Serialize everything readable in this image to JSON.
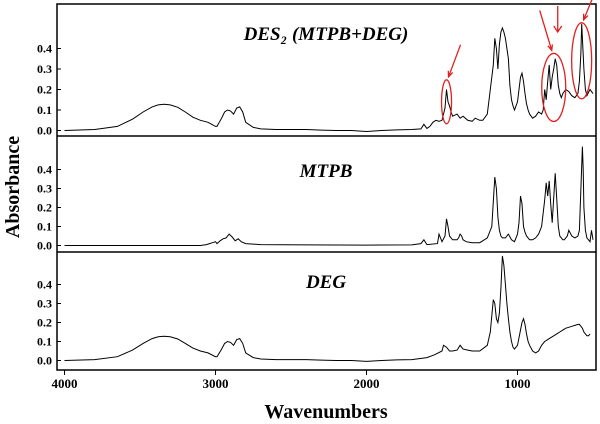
{
  "chart_data": [
    {
      "type": "line",
      "title": "DES₂ (MTPB+DEG)",
      "ylim": [
        -0.03,
        0.55
      ],
      "y_ticks": [
        "0.0",
        "0.1",
        "0.2",
        "0.3",
        "0.4"
      ],
      "highlight_color": "#e02020",
      "highlighted_peaks": [
        1470,
        760,
        575
      ],
      "series": [
        {
          "x": [
            4000,
            3800,
            3650,
            3550,
            3480,
            3420,
            3380,
            3340,
            3300,
            3250,
            3200,
            3150,
            3100,
            3050,
            3000,
            2990,
            2960,
            2940,
            2920,
            2900,
            2880,
            2860,
            2840,
            2820,
            2800,
            2750,
            2700,
            2600,
            2500,
            2400,
            2300,
            2200,
            2100,
            2000,
            1900,
            1800,
            1700,
            1640,
            1620,
            1600,
            1580,
            1560,
            1540,
            1520,
            1500,
            1490,
            1480,
            1470,
            1460,
            1450,
            1440,
            1430,
            1400,
            1380,
            1360,
            1330,
            1300,
            1280,
            1250,
            1230,
            1200,
            1180,
            1160,
            1150,
            1140,
            1130,
            1120,
            1110,
            1100,
            1090,
            1080,
            1070,
            1060,
            1050,
            1040,
            1030,
            1020,
            1000,
            990,
            980,
            970,
            960,
            950,
            940,
            930,
            920,
            900,
            880,
            860,
            840,
            830,
            820,
            810,
            800,
            790,
            780,
            770,
            760,
            750,
            740,
            730,
            720,
            710,
            700,
            680,
            660,
            640,
            620,
            600,
            590,
            580,
            575,
            570,
            560,
            550,
            540,
            520,
            500
          ],
          "y": [
            0.0,
            0.005,
            0.02,
            0.055,
            0.09,
            0.115,
            0.125,
            0.128,
            0.125,
            0.113,
            0.09,
            0.065,
            0.05,
            0.04,
            0.02,
            0.02,
            0.06,
            0.09,
            0.1,
            0.095,
            0.08,
            0.11,
            0.115,
            0.09,
            0.04,
            0.015,
            0.008,
            0.005,
            0.005,
            0.005,
            0.002,
            0.0,
            0.0,
            -0.005,
            0.0,
            0.003,
            0.005,
            0.008,
            0.03,
            0.01,
            0.02,
            0.04,
            0.05,
            0.045,
            0.05,
            0.08,
            0.11,
            0.2,
            0.14,
            0.12,
            0.09,
            0.07,
            0.08,
            0.06,
            0.07,
            0.05,
            0.045,
            0.06,
            0.05,
            0.05,
            0.08,
            0.2,
            0.32,
            0.45,
            0.4,
            0.3,
            0.42,
            0.48,
            0.5,
            0.48,
            0.45,
            0.4,
            0.35,
            0.22,
            0.15,
            0.12,
            0.1,
            0.14,
            0.2,
            0.26,
            0.28,
            0.24,
            0.18,
            0.13,
            0.1,
            0.08,
            0.06,
            0.07,
            0.09,
            0.08,
            0.1,
            0.2,
            0.15,
            0.24,
            0.32,
            0.2,
            0.26,
            0.3,
            0.35,
            0.32,
            0.22,
            0.18,
            0.16,
            0.18,
            0.2,
            0.19,
            0.17,
            0.16,
            0.18,
            0.24,
            0.38,
            0.52,
            0.45,
            0.3,
            0.2,
            0.17,
            0.2,
            0.18
          ]
        }
      ]
    },
    {
      "type": "line",
      "title": "MTPB",
      "ylim": [
        -0.03,
        0.55
      ],
      "y_ticks": [
        "0.0",
        "0.1",
        "0.2",
        "0.3",
        "0.4"
      ],
      "series": [
        {
          "x": [
            4000,
            3500,
            3100,
            3060,
            3040,
            3020,
            3000,
            2990,
            2970,
            2950,
            2930,
            2910,
            2890,
            2870,
            2850,
            2830,
            2800,
            2700,
            2400,
            2000,
            1700,
            1640,
            1620,
            1600,
            1530,
            1520,
            1500,
            1480,
            1470,
            1460,
            1450,
            1440,
            1430,
            1400,
            1390,
            1380,
            1370,
            1360,
            1340,
            1300,
            1250,
            1200,
            1170,
            1150,
            1140,
            1130,
            1120,
            1110,
            1100,
            1080,
            1060,
            1040,
            1020,
            1000,
            990,
            980,
            970,
            960,
            950,
            940,
            930,
            920,
            900,
            880,
            860,
            840,
            820,
            810,
            800,
            790,
            780,
            770,
            760,
            750,
            740,
            730,
            720,
            710,
            700,
            690,
            680,
            670,
            660,
            640,
            620,
            600,
            590,
            580,
            570,
            565,
            560,
            550,
            540,
            530,
            520,
            510,
            500
          ],
          "y": [
            0.0,
            0.0,
            0.0,
            0.005,
            0.01,
            0.015,
            0.02,
            0.01,
            0.025,
            0.035,
            0.04,
            0.06,
            0.045,
            0.025,
            0.035,
            0.02,
            0.01,
            0.005,
            0.003,
            0.002,
            0.003,
            0.01,
            0.03,
            0.005,
            0.01,
            0.06,
            0.02,
            0.05,
            0.14,
            0.1,
            0.05,
            0.04,
            0.03,
            0.03,
            0.04,
            0.06,
            0.05,
            0.03,
            0.02,
            0.015,
            0.015,
            0.04,
            0.1,
            0.36,
            0.3,
            0.15,
            0.08,
            0.05,
            0.04,
            0.04,
            0.06,
            0.03,
            0.02,
            0.06,
            0.12,
            0.26,
            0.22,
            0.1,
            0.07,
            0.05,
            0.04,
            0.03,
            0.03,
            0.04,
            0.06,
            0.1,
            0.24,
            0.33,
            0.26,
            0.34,
            0.22,
            0.12,
            0.25,
            0.38,
            0.25,
            0.1,
            0.05,
            0.04,
            0.03,
            0.03,
            0.04,
            0.05,
            0.08,
            0.05,
            0.04,
            0.05,
            0.08,
            0.3,
            0.52,
            0.4,
            0.2,
            0.08,
            0.04,
            0.03,
            0.02,
            0.08,
            0.03
          ]
        }
      ]
    },
    {
      "type": "line",
      "title": "DEG",
      "ylim": [
        -0.03,
        0.55
      ],
      "y_ticks": [
        "0.0",
        "0.1",
        "0.2",
        "0.3",
        "0.4"
      ],
      "series": [
        {
          "x": [
            4000,
            3800,
            3650,
            3550,
            3480,
            3420,
            3380,
            3340,
            3300,
            3250,
            3200,
            3150,
            3100,
            3050,
            3000,
            2990,
            2960,
            2940,
            2920,
            2900,
            2880,
            2860,
            2840,
            2820,
            2800,
            2750,
            2700,
            2600,
            2500,
            2400,
            2300,
            2200,
            2100,
            2000,
            1900,
            1800,
            1700,
            1650,
            1600,
            1550,
            1500,
            1490,
            1470,
            1450,
            1430,
            1400,
            1380,
            1360,
            1330,
            1300,
            1250,
            1200,
            1180,
            1160,
            1150,
            1140,
            1130,
            1120,
            1110,
            1100,
            1090,
            1080,
            1070,
            1060,
            1050,
            1040,
            1030,
            1020,
            1000,
            990,
            980,
            970,
            960,
            950,
            940,
            930,
            920,
            900,
            880,
            860,
            840,
            820,
            800,
            780,
            760,
            740,
            720,
            700,
            680,
            660,
            640,
            620,
            600,
            590,
            580,
            570,
            560,
            550,
            540,
            530,
            520
          ],
          "y": [
            0.0,
            0.005,
            0.02,
            0.055,
            0.09,
            0.115,
            0.125,
            0.128,
            0.125,
            0.113,
            0.09,
            0.065,
            0.05,
            0.04,
            0.02,
            0.02,
            0.06,
            0.09,
            0.1,
            0.095,
            0.08,
            0.11,
            0.115,
            0.09,
            0.04,
            0.015,
            0.008,
            0.005,
            0.005,
            0.005,
            0.002,
            0.0,
            0.0,
            -0.005,
            0.0,
            0.003,
            0.005,
            0.01,
            0.015,
            0.03,
            0.05,
            0.08,
            0.07,
            0.05,
            0.05,
            0.055,
            0.08,
            0.06,
            0.055,
            0.05,
            0.05,
            0.08,
            0.15,
            0.32,
            0.3,
            0.22,
            0.2,
            0.25,
            0.38,
            0.55,
            0.5,
            0.4,
            0.3,
            0.22,
            0.15,
            0.1,
            0.07,
            0.06,
            0.08,
            0.12,
            0.16,
            0.2,
            0.22,
            0.19,
            0.14,
            0.1,
            0.08,
            0.05,
            0.04,
            0.05,
            0.08,
            0.1,
            0.11,
            0.12,
            0.13,
            0.14,
            0.15,
            0.16,
            0.17,
            0.175,
            0.18,
            0.185,
            0.19,
            0.19,
            0.18,
            0.17,
            0.15,
            0.14,
            0.13,
            0.13,
            0.14
          ]
        }
      ]
    }
  ],
  "axes": {
    "xlabel": "Wavenumbers",
    "ylabel": "Absorbance",
    "xlim": [
      4050,
      480
    ],
    "x_ticks": [
      "4000",
      "3000",
      "2000",
      "1000"
    ]
  }
}
